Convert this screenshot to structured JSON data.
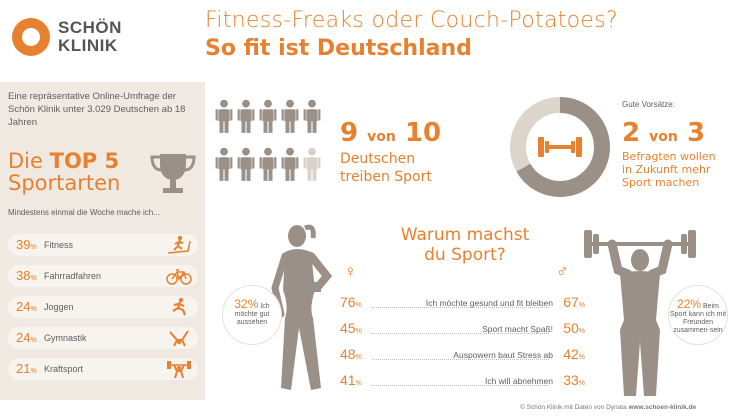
{
  "logo": {
    "line1": "SCHÖN",
    "line2": "KLINIK"
  },
  "title": {
    "line1": "Fitness-Freaks oder Couch-Potatoes?",
    "line2": "So fit ist Deutschland"
  },
  "intro": "Eine repräsentative Online-Umfrage der Schön Klinik unter 3.029 Deutschen ab 18 Jahren",
  "top5": {
    "prefix": "Die",
    "bold": "TOP 5",
    "line2": "Sportarten",
    "subtitle": "Mindestens einmal die Woche mache ich...",
    "items": [
      {
        "pct": "39",
        "label": "Fitness",
        "icon": "treadmill-icon"
      },
      {
        "pct": "38",
        "label": "Fahrradfahren",
        "icon": "bicycle-icon"
      },
      {
        "pct": "24",
        "label": "Joggen",
        "icon": "runner-icon"
      },
      {
        "pct": "24",
        "label": "Gymnastik",
        "icon": "gymnast-icon"
      },
      {
        "pct": "21",
        "label": "Kraftsport",
        "icon": "weightlifter-icon"
      }
    ]
  },
  "stat_sport": {
    "num": "9",
    "von": "von",
    "den": "10",
    "line1": "Deutschen",
    "line2": "treiben Sport",
    "filled": 9,
    "total": 10
  },
  "stat_goals": {
    "label": "Gute Vorsätze:",
    "num": "2",
    "von": "von",
    "den": "3",
    "line1": "Befragten wollen",
    "line2": "in Zukunft mehr",
    "line3": "Sport machen",
    "fraction": 0.667
  },
  "warum": {
    "line1": "Warum machst",
    "line2": "du Sport?",
    "female_symbol": "♀",
    "male_symbol": "♂",
    "reasons": [
      {
        "female": "76",
        "label": "Ich möchte gesund und fit bleiben",
        "male": "67"
      },
      {
        "female": "45",
        "label": "Sport macht Spaß!",
        "male": "50"
      },
      {
        "female": "48",
        "label": "Auspowern baut Stress ab",
        "male": "42"
      },
      {
        "female": "41",
        "label": "Ich will abnehmen",
        "male": "33"
      }
    ]
  },
  "bubble_female": {
    "pct": "32",
    "text": "Ich möchte gut aussehen"
  },
  "bubble_male": {
    "pct": "22",
    "text": "Beim Sport kann ich mit Freunden zusammen-sein"
  },
  "footer": {
    "text": "© Schön Klinik mit Daten von Dynata",
    "url": "www.schoen-klinik.de"
  },
  "colors": {
    "accent": "#e8812f",
    "panel": "#efe9e2",
    "figure": "#9a9088"
  }
}
